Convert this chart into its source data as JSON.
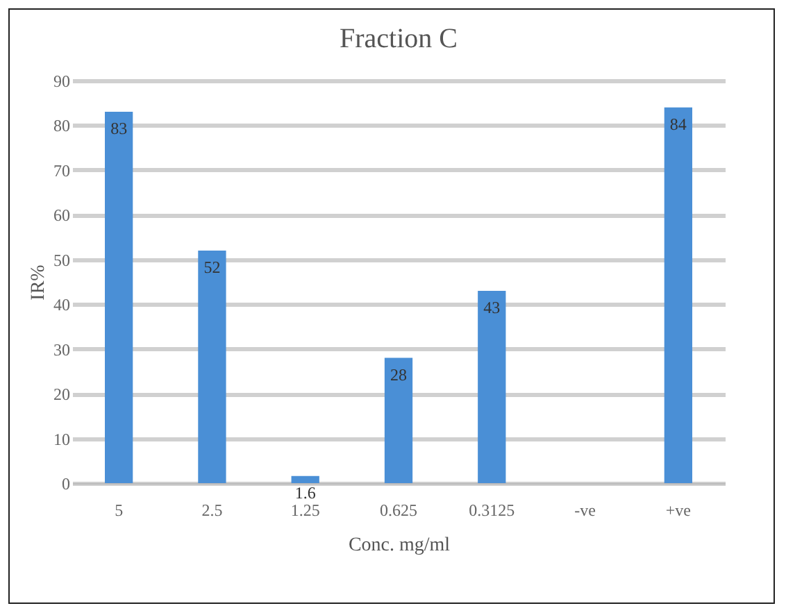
{
  "chart_data": {
    "type": "bar",
    "title": "Fraction C",
    "xlabel": "Conc. mg/ml",
    "ylabel": "IR%",
    "categories": [
      "5",
      "2.5",
      "1.25",
      "0.625",
      "0.3125",
      "-ve",
      "+ve"
    ],
    "values": [
      83,
      52,
      1.6,
      28,
      43,
      null,
      84
    ],
    "color": "#4a8fd6",
    "ylim": [
      0,
      90
    ],
    "yticks": [
      0,
      10,
      20,
      30,
      40,
      50,
      60,
      70,
      80,
      90
    ],
    "grid": "y",
    "data_labels": true
  }
}
